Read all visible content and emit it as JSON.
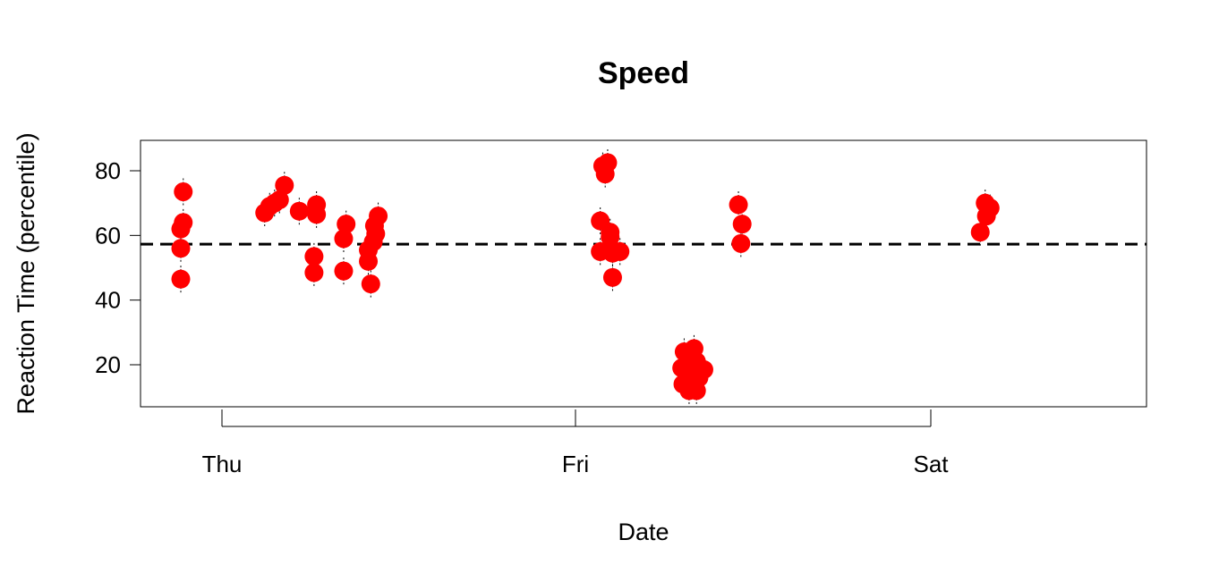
{
  "chart_data": {
    "type": "scatter",
    "title": "Speed",
    "xlabel": "Date",
    "ylabel": "Reaction Time (percentile)",
    "x_ticks": [
      "Thu",
      "Fri",
      "Sat"
    ],
    "y_ticks": [
      20,
      40,
      60,
      80
    ],
    "ylim": [
      7,
      90
    ],
    "reference_line": 57.3,
    "point_color": "#ff0000",
    "grid": false,
    "legend": "none",
    "points": [
      {
        "x": "Thu 00:00",
        "y": 46.5
      },
      {
        "x": "Thu 00:00",
        "y": 56.0
      },
      {
        "x": "Thu 00:00",
        "y": 62.0
      },
      {
        "x": "Thu 00:10",
        "y": 64.0
      },
      {
        "x": "Thu 00:10",
        "y": 73.5
      },
      {
        "x": "Thu 05:40",
        "y": 67.0
      },
      {
        "x": "Thu 06:00",
        "y": 69.0
      },
      {
        "x": "Thu 06:20",
        "y": 70.0
      },
      {
        "x": "Thu 06:40",
        "y": 71.0
      },
      {
        "x": "Thu 07:00",
        "y": 75.5
      },
      {
        "x": "Thu 08:00",
        "y": 67.5
      },
      {
        "x": "Thu 09:00",
        "y": 53.5
      },
      {
        "x": "Thu 09:00",
        "y": 48.5
      },
      {
        "x": "Thu 09:10",
        "y": 69.5
      },
      {
        "x": "Thu 09:10",
        "y": 66.5
      },
      {
        "x": "Thu 11:00",
        "y": 49.0
      },
      {
        "x": "Thu 11:00",
        "y": 59.0
      },
      {
        "x": "Thu 11:10",
        "y": 63.5
      },
      {
        "x": "Thu 12:40",
        "y": 52.0
      },
      {
        "x": "Thu 12:40",
        "y": 55.5
      },
      {
        "x": "Thu 12:50",
        "y": 45.0
      },
      {
        "x": "Thu 13:00",
        "y": 58.0
      },
      {
        "x": "Thu 13:05",
        "y": 63.0
      },
      {
        "x": "Thu 13:10",
        "y": 60.5
      },
      {
        "x": "Thu 13:20",
        "y": 66.0
      },
      {
        "x": "Fri 04:20",
        "y": 55.0
      },
      {
        "x": "Fri 04:20",
        "y": 64.5
      },
      {
        "x": "Fri 04:30",
        "y": 81.5
      },
      {
        "x": "Fri 04:40",
        "y": 79.0
      },
      {
        "x": "Fri 04:50",
        "y": 82.5
      },
      {
        "x": "Fri 05:00",
        "y": 61.0
      },
      {
        "x": "Fri 05:00",
        "y": 59.5
      },
      {
        "x": "Fri 05:10",
        "y": 54.5
      },
      {
        "x": "Fri 05:10",
        "y": 47.0
      },
      {
        "x": "Fri 05:40",
        "y": 55.0
      },
      {
        "x": "Fri 09:50",
        "y": 19.0
      },
      {
        "x": "Fri 09:55",
        "y": 14.0
      },
      {
        "x": "Fri 10:00",
        "y": 24.0
      },
      {
        "x": "Fri 10:10",
        "y": 17.5
      },
      {
        "x": "Fri 10:20",
        "y": 12.0
      },
      {
        "x": "Fri 10:20",
        "y": 23.0
      },
      {
        "x": "Fri 10:30",
        "y": 19.0
      },
      {
        "x": "Fri 10:40",
        "y": 25.0
      },
      {
        "x": "Fri 10:40",
        "y": 15.0
      },
      {
        "x": "Fri 10:50",
        "y": 21.0
      },
      {
        "x": "Fri 10:50",
        "y": 12.0
      },
      {
        "x": "Fri 11:00",
        "y": 16.0
      },
      {
        "x": "Fri 11:20",
        "y": 18.5
      },
      {
        "x": "Fri 13:40",
        "y": 69.5
      },
      {
        "x": "Fri 13:50",
        "y": 57.5
      },
      {
        "x": "Fri 13:55",
        "y": 63.5
      },
      {
        "x": "Sat 06:00",
        "y": 61.0
      },
      {
        "x": "Sat 06:20",
        "y": 70.0
      },
      {
        "x": "Sat 06:25",
        "y": 66.0
      },
      {
        "x": "Sat 06:40",
        "y": 68.5
      }
    ]
  }
}
